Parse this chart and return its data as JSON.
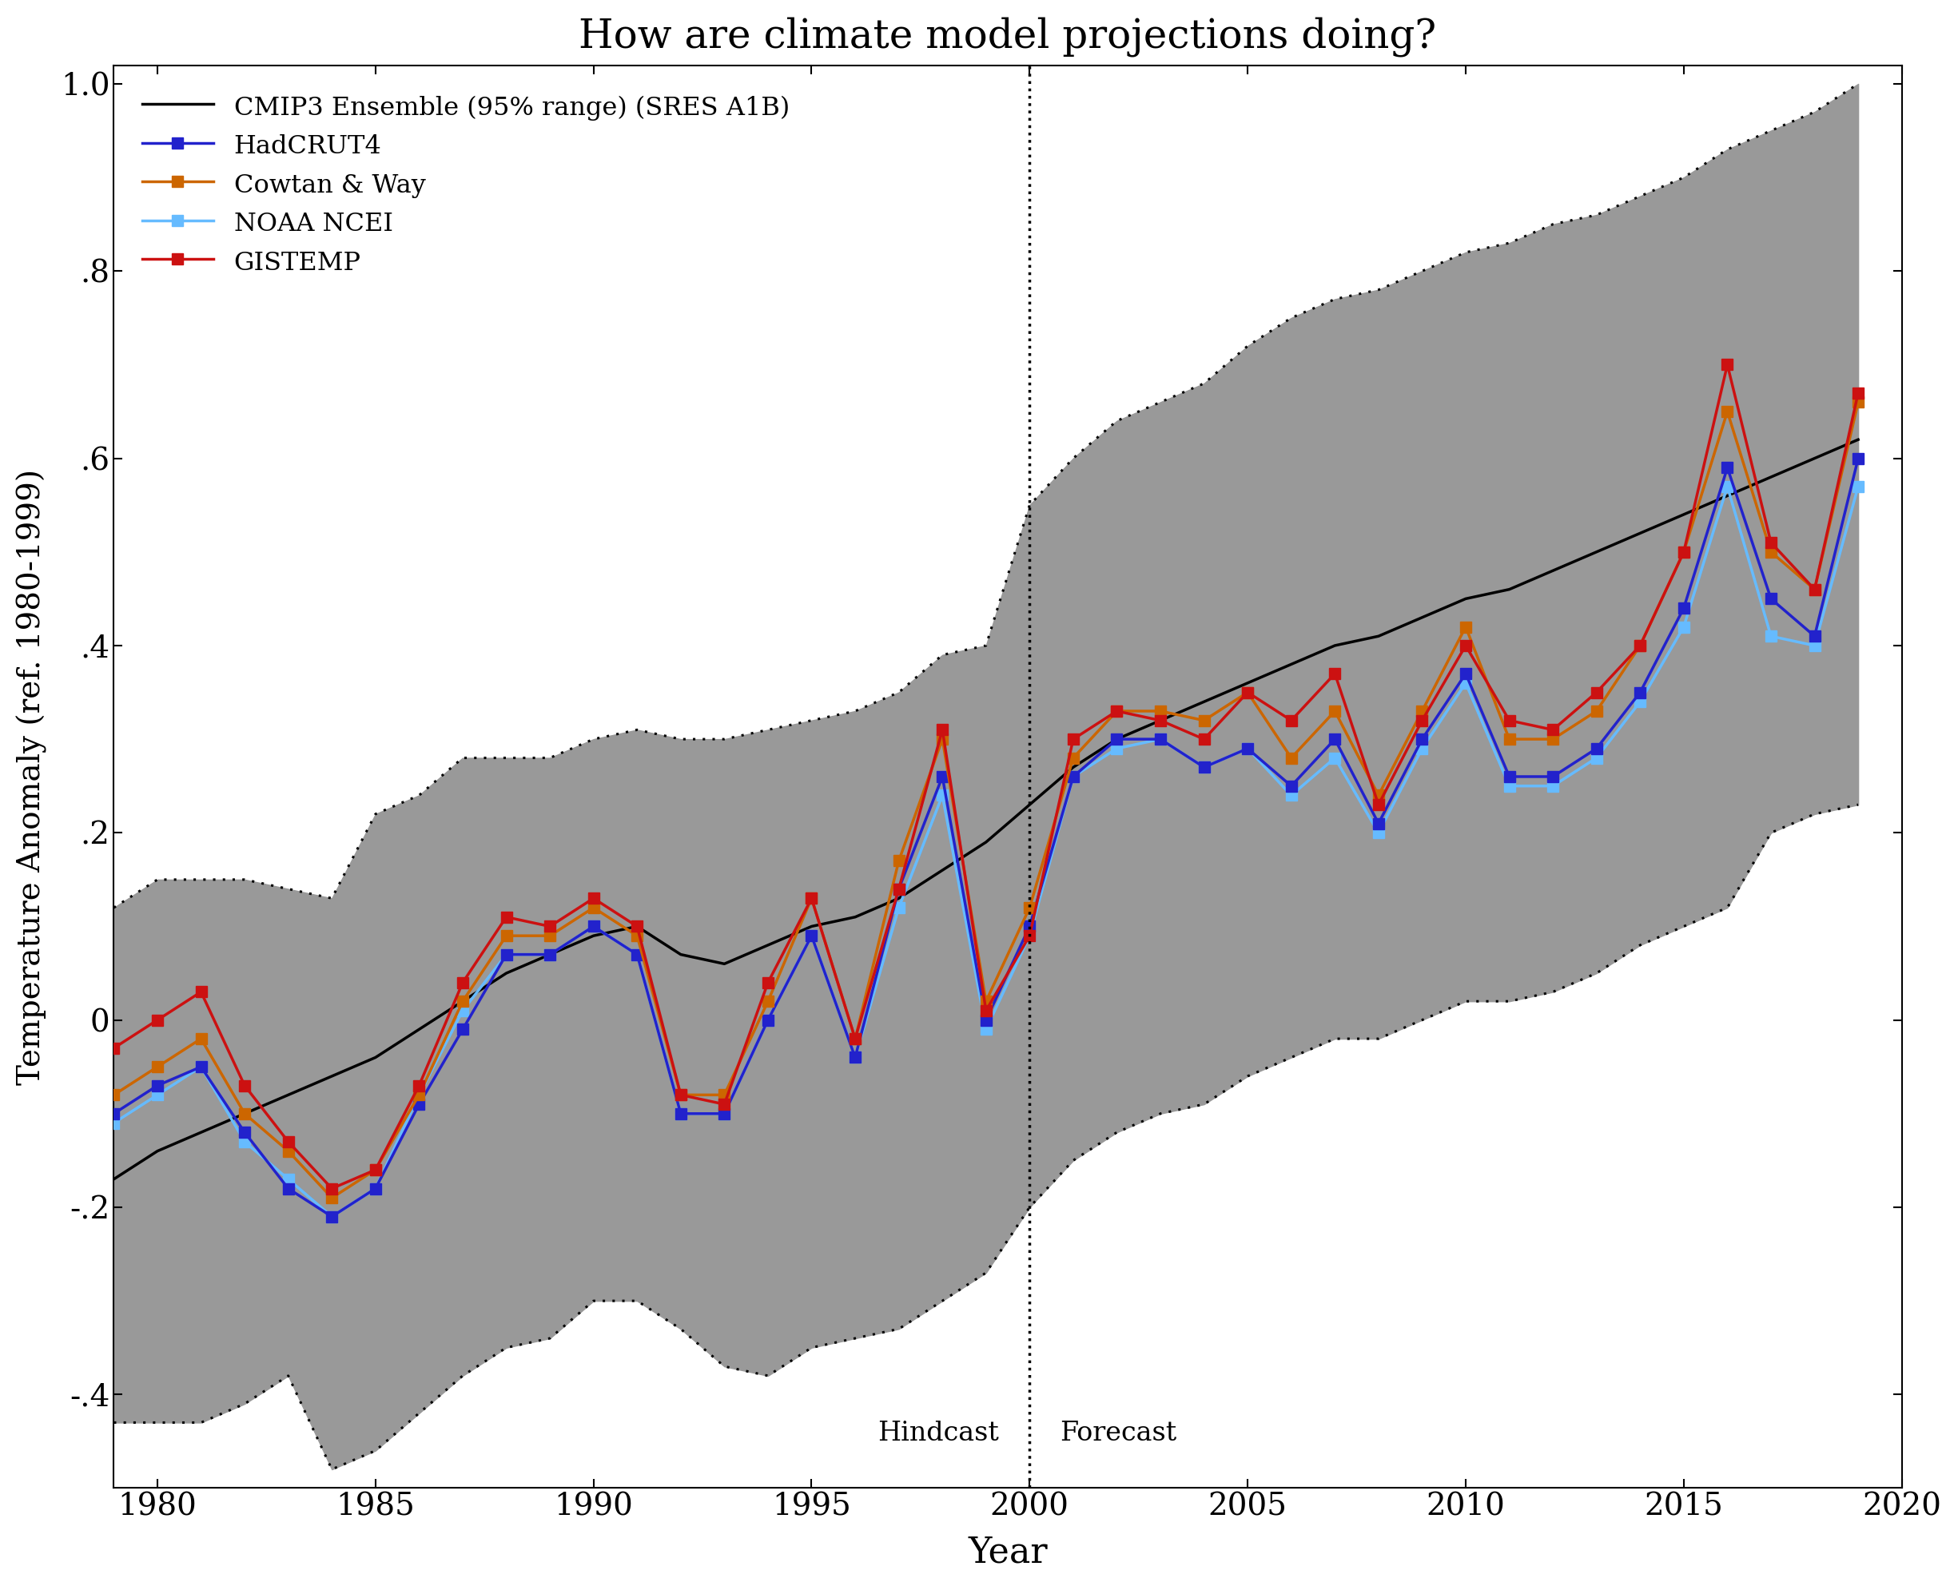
{
  "title": "How are climate model projections doing?",
  "xlabel": "Year",
  "ylabel": "Temperature Anomaly (ref. 1980-1999)",
  "xlim": [
    1979,
    2020
  ],
  "ylim": [
    -0.5,
    1.02
  ],
  "yticks": [
    -0.4,
    -0.2,
    0.0,
    0.2,
    0.4,
    0.6,
    0.8,
    1.0
  ],
  "ytick_labels": [
    "-.4",
    "-.2",
    "0",
    ".2",
    ".4",
    ".6",
    ".8",
    "1.0"
  ],
  "xticks": [
    1980,
    1985,
    1990,
    1995,
    2000,
    2005,
    2010,
    2015,
    2020
  ],
  "hindcast_year": 2000,
  "cmip3_years": [
    1979,
    1980,
    1981,
    1982,
    1983,
    1984,
    1985,
    1986,
    1987,
    1988,
    1989,
    1990,
    1991,
    1992,
    1993,
    1994,
    1995,
    1996,
    1997,
    1998,
    1999,
    2000,
    2001,
    2002,
    2003,
    2004,
    2005,
    2006,
    2007,
    2008,
    2009,
    2010,
    2011,
    2012,
    2013,
    2014,
    2015,
    2016,
    2017,
    2018,
    2019
  ],
  "cmip3_mean": [
    -0.17,
    -0.14,
    -0.12,
    -0.1,
    -0.08,
    -0.06,
    -0.04,
    -0.01,
    0.02,
    0.05,
    0.07,
    0.09,
    0.1,
    0.07,
    0.06,
    0.08,
    0.1,
    0.11,
    0.13,
    0.16,
    0.19,
    0.23,
    0.27,
    0.3,
    0.32,
    0.34,
    0.36,
    0.38,
    0.4,
    0.41,
    0.43,
    0.45,
    0.46,
    0.48,
    0.5,
    0.52,
    0.54,
    0.56,
    0.58,
    0.6,
    0.62
  ],
  "cmip3_upper": [
    0.12,
    0.15,
    0.15,
    0.15,
    0.14,
    0.13,
    0.22,
    0.24,
    0.28,
    0.28,
    0.28,
    0.3,
    0.31,
    0.3,
    0.3,
    0.31,
    0.32,
    0.33,
    0.35,
    0.39,
    0.4,
    0.55,
    0.6,
    0.64,
    0.66,
    0.68,
    0.72,
    0.75,
    0.77,
    0.78,
    0.8,
    0.82,
    0.83,
    0.85,
    0.86,
    0.88,
    0.9,
    0.93,
    0.95,
    0.97,
    1.0
  ],
  "cmip3_lower": [
    -0.43,
    -0.43,
    -0.43,
    -0.41,
    -0.38,
    -0.48,
    -0.46,
    -0.42,
    -0.38,
    -0.35,
    -0.34,
    -0.3,
    -0.3,
    -0.33,
    -0.37,
    -0.38,
    -0.35,
    -0.34,
    -0.33,
    -0.3,
    -0.27,
    -0.2,
    -0.15,
    -0.12,
    -0.1,
    -0.09,
    -0.06,
    -0.04,
    -0.02,
    -0.02,
    0.0,
    0.02,
    0.02,
    0.03,
    0.05,
    0.08,
    0.1,
    0.12,
    0.2,
    0.22,
    0.23
  ],
  "obs_years": [
    1979,
    1980,
    1981,
    1982,
    1983,
    1984,
    1985,
    1986,
    1987,
    1988,
    1989,
    1990,
    1991,
    1992,
    1993,
    1994,
    1995,
    1996,
    1997,
    1998,
    1999,
    2000,
    2001,
    2002,
    2003,
    2004,
    2005,
    2006,
    2007,
    2008,
    2009,
    2010,
    2011,
    2012,
    2013,
    2014,
    2015,
    2016,
    2017,
    2018,
    2019
  ],
  "hadcrut4": [
    -0.1,
    -0.07,
    -0.05,
    -0.12,
    -0.18,
    -0.21,
    -0.18,
    -0.09,
    -0.01,
    0.07,
    0.07,
    0.1,
    0.07,
    -0.1,
    -0.1,
    0.0,
    0.09,
    -0.04,
    0.14,
    0.26,
    0.0,
    0.1,
    0.26,
    0.3,
    0.3,
    0.27,
    0.29,
    0.25,
    0.3,
    0.21,
    0.3,
    0.37,
    0.26,
    0.26,
    0.29,
    0.35,
    0.44,
    0.59,
    0.45,
    0.41,
    0.6
  ],
  "cowtan_way": [
    -0.08,
    -0.05,
    -0.02,
    -0.1,
    -0.14,
    -0.19,
    -0.16,
    -0.08,
    0.02,
    0.09,
    0.09,
    0.12,
    0.09,
    -0.08,
    -0.08,
    0.02,
    0.13,
    -0.02,
    0.17,
    0.3,
    0.02,
    0.12,
    0.28,
    0.33,
    0.33,
    0.32,
    0.35,
    0.28,
    0.33,
    0.24,
    0.33,
    0.42,
    0.3,
    0.3,
    0.33,
    0.4,
    0.5,
    0.65,
    0.5,
    0.46,
    0.66
  ],
  "noaa_ncei": [
    -0.11,
    -0.08,
    -0.05,
    -0.13,
    -0.17,
    -0.21,
    -0.18,
    -0.08,
    0.01,
    0.07,
    0.07,
    0.1,
    0.07,
    -0.1,
    -0.1,
    0.0,
    0.09,
    -0.04,
    0.12,
    0.24,
    -0.01,
    0.09,
    0.26,
    0.29,
    0.3,
    0.27,
    0.29,
    0.24,
    0.28,
    0.2,
    0.29,
    0.36,
    0.25,
    0.25,
    0.28,
    0.34,
    0.42,
    0.57,
    0.41,
    0.4,
    0.57
  ],
  "gistemp": [
    -0.03,
    0.0,
    0.03,
    -0.07,
    -0.13,
    -0.18,
    -0.16,
    -0.07,
    0.04,
    0.11,
    0.1,
    0.13,
    0.1,
    -0.08,
    -0.09,
    0.04,
    0.13,
    -0.02,
    0.14,
    0.31,
    0.01,
    0.09,
    0.3,
    0.33,
    0.32,
    0.3,
    0.35,
    0.32,
    0.37,
    0.23,
    0.32,
    0.4,
    0.32,
    0.31,
    0.35,
    0.4,
    0.5,
    0.7,
    0.51,
    0.46,
    0.67
  ],
  "colors": {
    "cmip3_mean": "#000000",
    "hadcrut4": "#2222CC",
    "cowtan_way": "#CC6600",
    "noaa_ncei": "#66BBFF",
    "gistemp": "#CC1111",
    "fill": "#999999",
    "fill_alpha": 1.0
  },
  "background_color": "#ffffff",
  "legend_labels": [
    "CMIP3 Ensemble (95% range) (SRES A1B)",
    "HadCRUT4",
    "Cowtan & Way",
    "NOAA NCEI",
    "GISTEMP"
  ],
  "hindcast_label": "Hindcast",
  "forecast_label": "Forecast"
}
